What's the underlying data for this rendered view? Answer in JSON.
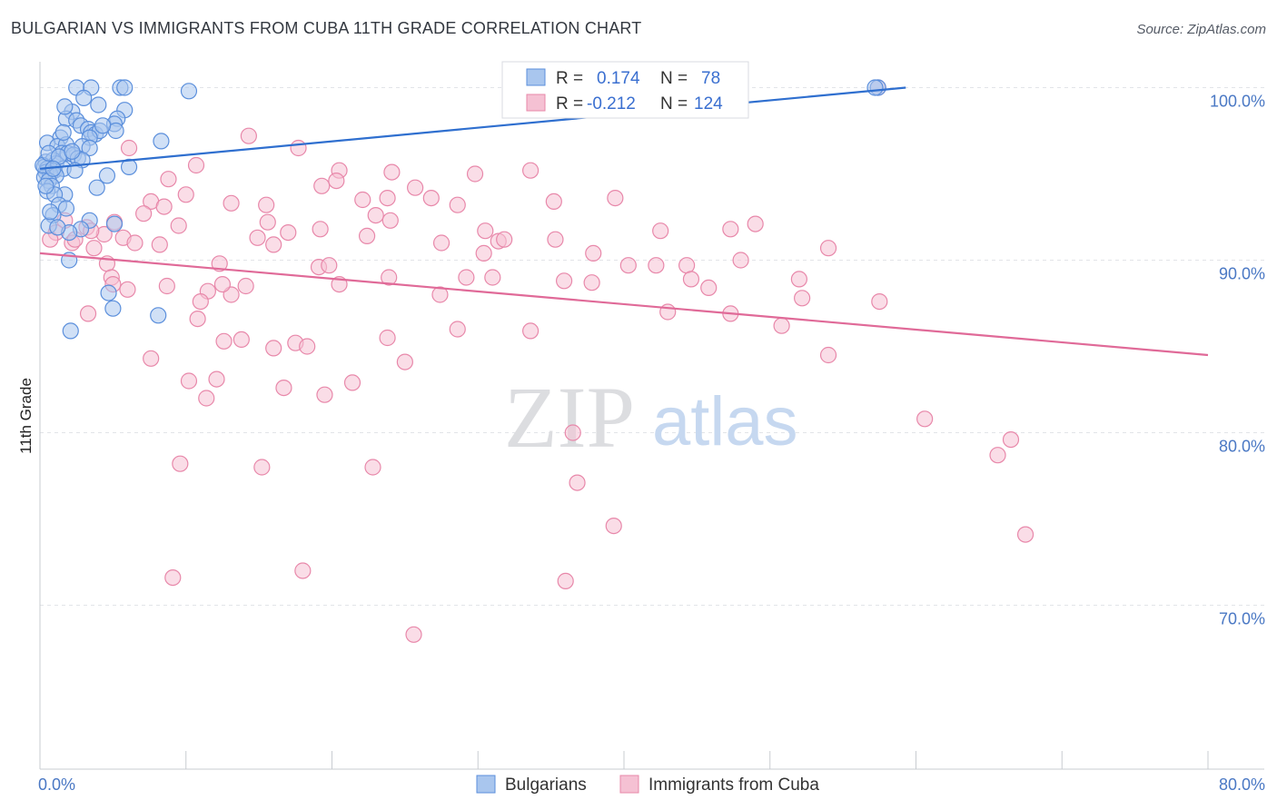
{
  "header": {
    "title": "BULGARIAN VS IMMIGRANTS FROM CUBA 11TH GRADE CORRELATION CHART",
    "source": "Source: ZipAtlas.com"
  },
  "watermark": {
    "zip": "ZIP",
    "atlas": "atlas"
  },
  "legend_box": {
    "rows": [
      {
        "r_label": "R =",
        "r_value": "0.174",
        "n_label": "N =",
        "n_value": "78",
        "color": "#5b8fdc"
      },
      {
        "r_label": "R =",
        "r_value": "-0.212",
        "n_label": "N =",
        "n_value": "124",
        "color": "#e888aa"
      }
    ]
  },
  "bottom_legend": [
    {
      "label": "Bulgarians",
      "color": "#5b8fdc"
    },
    {
      "label": "Immigrants from Cuba",
      "color": "#e888aa"
    }
  ],
  "chart_data": {
    "type": "scatter",
    "title": "BULGARIAN VS IMMIGRANTS FROM CUBA 11TH GRADE CORRELATION CHART",
    "xlabel": "",
    "ylabel": "11th Grade",
    "xlim": [
      0,
      80
    ],
    "ylim": [
      60.5,
      101.5
    ],
    "grid": true,
    "legend_position": "bottom",
    "x_tick_labels": [
      {
        "value": 0,
        "label": "0.0%"
      },
      {
        "value": 80,
        "label": "80.0%"
      }
    ],
    "y_tick_labels": [
      {
        "value": 100,
        "label": "100.0%"
      },
      {
        "value": 90,
        "label": "90.0%"
      },
      {
        "value": 80,
        "label": "80.0%"
      },
      {
        "value": 70,
        "label": "70.0%"
      }
    ],
    "series": [
      {
        "name": "Bulgarians",
        "color": "#5b8fdc",
        "fill": "#a9c6ee",
        "trend": {
          "x": [
            0,
            59.3
          ],
          "y": [
            95.3,
            100
          ]
        },
        "points": [
          [
            2.5,
            100
          ],
          [
            3.5,
            100
          ],
          [
            5.5,
            100
          ],
          [
            5.8,
            100
          ],
          [
            10.2,
            99.8
          ],
          [
            3,
            99.4
          ],
          [
            4,
            99
          ],
          [
            5.8,
            98.7
          ],
          [
            2.2,
            98.6
          ],
          [
            1.8,
            98.2
          ],
          [
            2.5,
            98.1
          ],
          [
            5.3,
            98.2
          ],
          [
            5.1,
            97.9
          ],
          [
            5.2,
            97.5
          ],
          [
            2.8,
            97.8
          ],
          [
            3.3,
            97.6
          ],
          [
            3.5,
            97.4
          ],
          [
            3.8,
            97.3
          ],
          [
            4.1,
            97.5
          ],
          [
            3.4,
            97.1
          ],
          [
            1.4,
            97.1
          ],
          [
            8.3,
            96.9
          ],
          [
            0.5,
            96.8
          ],
          [
            1.2,
            96.6
          ],
          [
            1.8,
            96.7
          ],
          [
            2.9,
            96.6
          ],
          [
            3.4,
            96.5
          ],
          [
            1.5,
            96.2
          ],
          [
            1.9,
            96.2
          ],
          [
            2.3,
            96.1
          ],
          [
            2.6,
            95.9
          ],
          [
            2.9,
            95.8
          ],
          [
            0.4,
            95.7
          ],
          [
            0.9,
            95.8
          ],
          [
            1.1,
            95.6
          ],
          [
            0.3,
            95.4
          ],
          [
            0.5,
            95.3
          ],
          [
            1.0,
            95.2
          ],
          [
            1.6,
            95.3
          ],
          [
            6.1,
            95.4
          ],
          [
            0.4,
            95.1
          ],
          [
            0.7,
            95.0
          ],
          [
            1.1,
            94.9
          ],
          [
            0.3,
            94.8
          ],
          [
            4.6,
            94.9
          ],
          [
            0.6,
            94.6
          ],
          [
            0.8,
            94.3
          ],
          [
            3.9,
            94.2
          ],
          [
            0.5,
            94.0
          ],
          [
            1.7,
            93.8
          ],
          [
            1.0,
            93.8
          ],
          [
            1.3,
            93.2
          ],
          [
            1.8,
            93.0
          ],
          [
            0.9,
            92.6
          ],
          [
            3.4,
            92.3
          ],
          [
            0.6,
            92.0
          ],
          [
            5.1,
            92.1
          ],
          [
            2.8,
            91.8
          ],
          [
            2.0,
            91.6
          ],
          [
            2.0,
            90.0
          ],
          [
            4.7,
            88.1
          ],
          [
            5.0,
            87.2
          ],
          [
            8.1,
            86.8
          ],
          [
            2.1,
            85.9
          ],
          [
            57.4,
            100
          ],
          [
            57.2,
            100
          ],
          [
            0.2,
            95.5
          ],
          [
            0.6,
            96.2
          ],
          [
            1.3,
            96.0
          ],
          [
            2.2,
            96.3
          ],
          [
            0.9,
            95.3
          ],
          [
            4.3,
            97.8
          ],
          [
            1.6,
            97.4
          ],
          [
            0.7,
            92.8
          ],
          [
            1.2,
            91.9
          ],
          [
            0.4,
            94.3
          ],
          [
            2.4,
            95.2
          ],
          [
            1.7,
            98.9
          ]
        ]
      },
      {
        "name": "Immigrants from Cuba",
        "color": "#e888aa",
        "fill": "#f5c1d3",
        "trend": {
          "x": [
            0,
            80
          ],
          "y": [
            90.4,
            84.5
          ]
        },
        "points": [
          [
            57.4,
            100
          ],
          [
            14.3,
            97.2
          ],
          [
            6.1,
            96.5
          ],
          [
            17.7,
            96.5
          ],
          [
            8.8,
            94.7
          ],
          [
            10.7,
            95.5
          ],
          [
            19.3,
            94.3
          ],
          [
            20.5,
            95.2
          ],
          [
            20.3,
            94.6
          ],
          [
            24.1,
            95.1
          ],
          [
            29.8,
            95.0
          ],
          [
            33.6,
            95.2
          ],
          [
            22.1,
            93.5
          ],
          [
            23.8,
            93.6
          ],
          [
            26.8,
            93.6
          ],
          [
            28.6,
            93.2
          ],
          [
            35.2,
            93.4
          ],
          [
            39.4,
            93.6
          ],
          [
            10.0,
            93.8
          ],
          [
            7.6,
            93.4
          ],
          [
            8.5,
            93.1
          ],
          [
            9.5,
            92.0
          ],
          [
            13.1,
            93.3
          ],
          [
            15.5,
            93.2
          ],
          [
            15.6,
            92.2
          ],
          [
            23.0,
            92.6
          ],
          [
            24.0,
            92.3
          ],
          [
            7.1,
            92.7
          ],
          [
            1.7,
            92.3
          ],
          [
            5.1,
            92.2
          ],
          [
            3.2,
            91.9
          ],
          [
            4.4,
            91.5
          ],
          [
            3.5,
            91.7
          ],
          [
            1.1,
            91.6
          ],
          [
            0.7,
            91.2
          ],
          [
            2.2,
            91.0
          ],
          [
            3.7,
            90.7
          ],
          [
            5.7,
            91.3
          ],
          [
            8.2,
            90.9
          ],
          [
            14.9,
            91.3
          ],
          [
            16.0,
            90.9
          ],
          [
            17.0,
            91.6
          ],
          [
            19.2,
            91.8
          ],
          [
            22.4,
            91.4
          ],
          [
            27.5,
            91.0
          ],
          [
            30.5,
            91.7
          ],
          [
            31.4,
            91.1
          ],
          [
            31.8,
            91.2
          ],
          [
            35.3,
            91.2
          ],
          [
            42.5,
            91.7
          ],
          [
            47.3,
            91.8
          ],
          [
            49.0,
            92.1
          ],
          [
            54.0,
            90.7
          ],
          [
            37.9,
            90.4
          ],
          [
            30.4,
            90.4
          ],
          [
            44.3,
            89.7
          ],
          [
            40.3,
            89.7
          ],
          [
            42.2,
            89.7
          ],
          [
            48.0,
            90.0
          ],
          [
            12.3,
            89.8
          ],
          [
            19.1,
            89.6
          ],
          [
            19.8,
            89.7
          ],
          [
            4.6,
            89.8
          ],
          [
            4.9,
            89.0
          ],
          [
            5.0,
            88.6
          ],
          [
            8.7,
            88.5
          ],
          [
            11.5,
            88.2
          ],
          [
            13.1,
            88.0
          ],
          [
            14.1,
            88.5
          ],
          [
            20.5,
            88.6
          ],
          [
            23.9,
            89.0
          ],
          [
            31.0,
            89.0
          ],
          [
            37.8,
            88.7
          ],
          [
            44.6,
            88.9
          ],
          [
            45.8,
            88.4
          ],
          [
            52.0,
            88.9
          ],
          [
            52.2,
            87.8
          ],
          [
            57.5,
            87.6
          ],
          [
            27.4,
            88.0
          ],
          [
            35.9,
            88.8
          ],
          [
            6.0,
            88.3
          ],
          [
            11.0,
            87.6
          ],
          [
            10.8,
            86.6
          ],
          [
            3.3,
            86.9
          ],
          [
            43.0,
            87.0
          ],
          [
            47.3,
            86.9
          ],
          [
            50.8,
            86.2
          ],
          [
            28.6,
            86.0
          ],
          [
            33.6,
            85.9
          ],
          [
            12.6,
            85.3
          ],
          [
            13.8,
            85.4
          ],
          [
            16.0,
            84.9
          ],
          [
            17.5,
            85.2
          ],
          [
            18.3,
            85.0
          ],
          [
            23.8,
            85.5
          ],
          [
            25.0,
            84.1
          ],
          [
            7.6,
            84.3
          ],
          [
            54.0,
            84.5
          ],
          [
            10.2,
            83.0
          ],
          [
            12.1,
            83.1
          ],
          [
            21.4,
            82.9
          ],
          [
            16.7,
            82.6
          ],
          [
            19.5,
            82.2
          ],
          [
            11.4,
            82.0
          ],
          [
            60.6,
            80.8
          ],
          [
            36.5,
            80.0
          ],
          [
            66.5,
            79.6
          ],
          [
            65.6,
            78.7
          ],
          [
            9.6,
            78.2
          ],
          [
            15.2,
            78.0
          ],
          [
            22.8,
            78.0
          ],
          [
            36.8,
            77.1
          ],
          [
            39.3,
            74.6
          ],
          [
            67.5,
            74.1
          ],
          [
            18.0,
            72.0
          ],
          [
            9.1,
            71.6
          ],
          [
            36.0,
            71.4
          ],
          [
            25.6,
            68.3
          ],
          [
            29.2,
            89.0
          ],
          [
            2.4,
            91.2
          ],
          [
            12.5,
            88.6
          ],
          [
            25.7,
            94.2
          ],
          [
            6.5,
            91.0
          ]
        ]
      }
    ]
  }
}
